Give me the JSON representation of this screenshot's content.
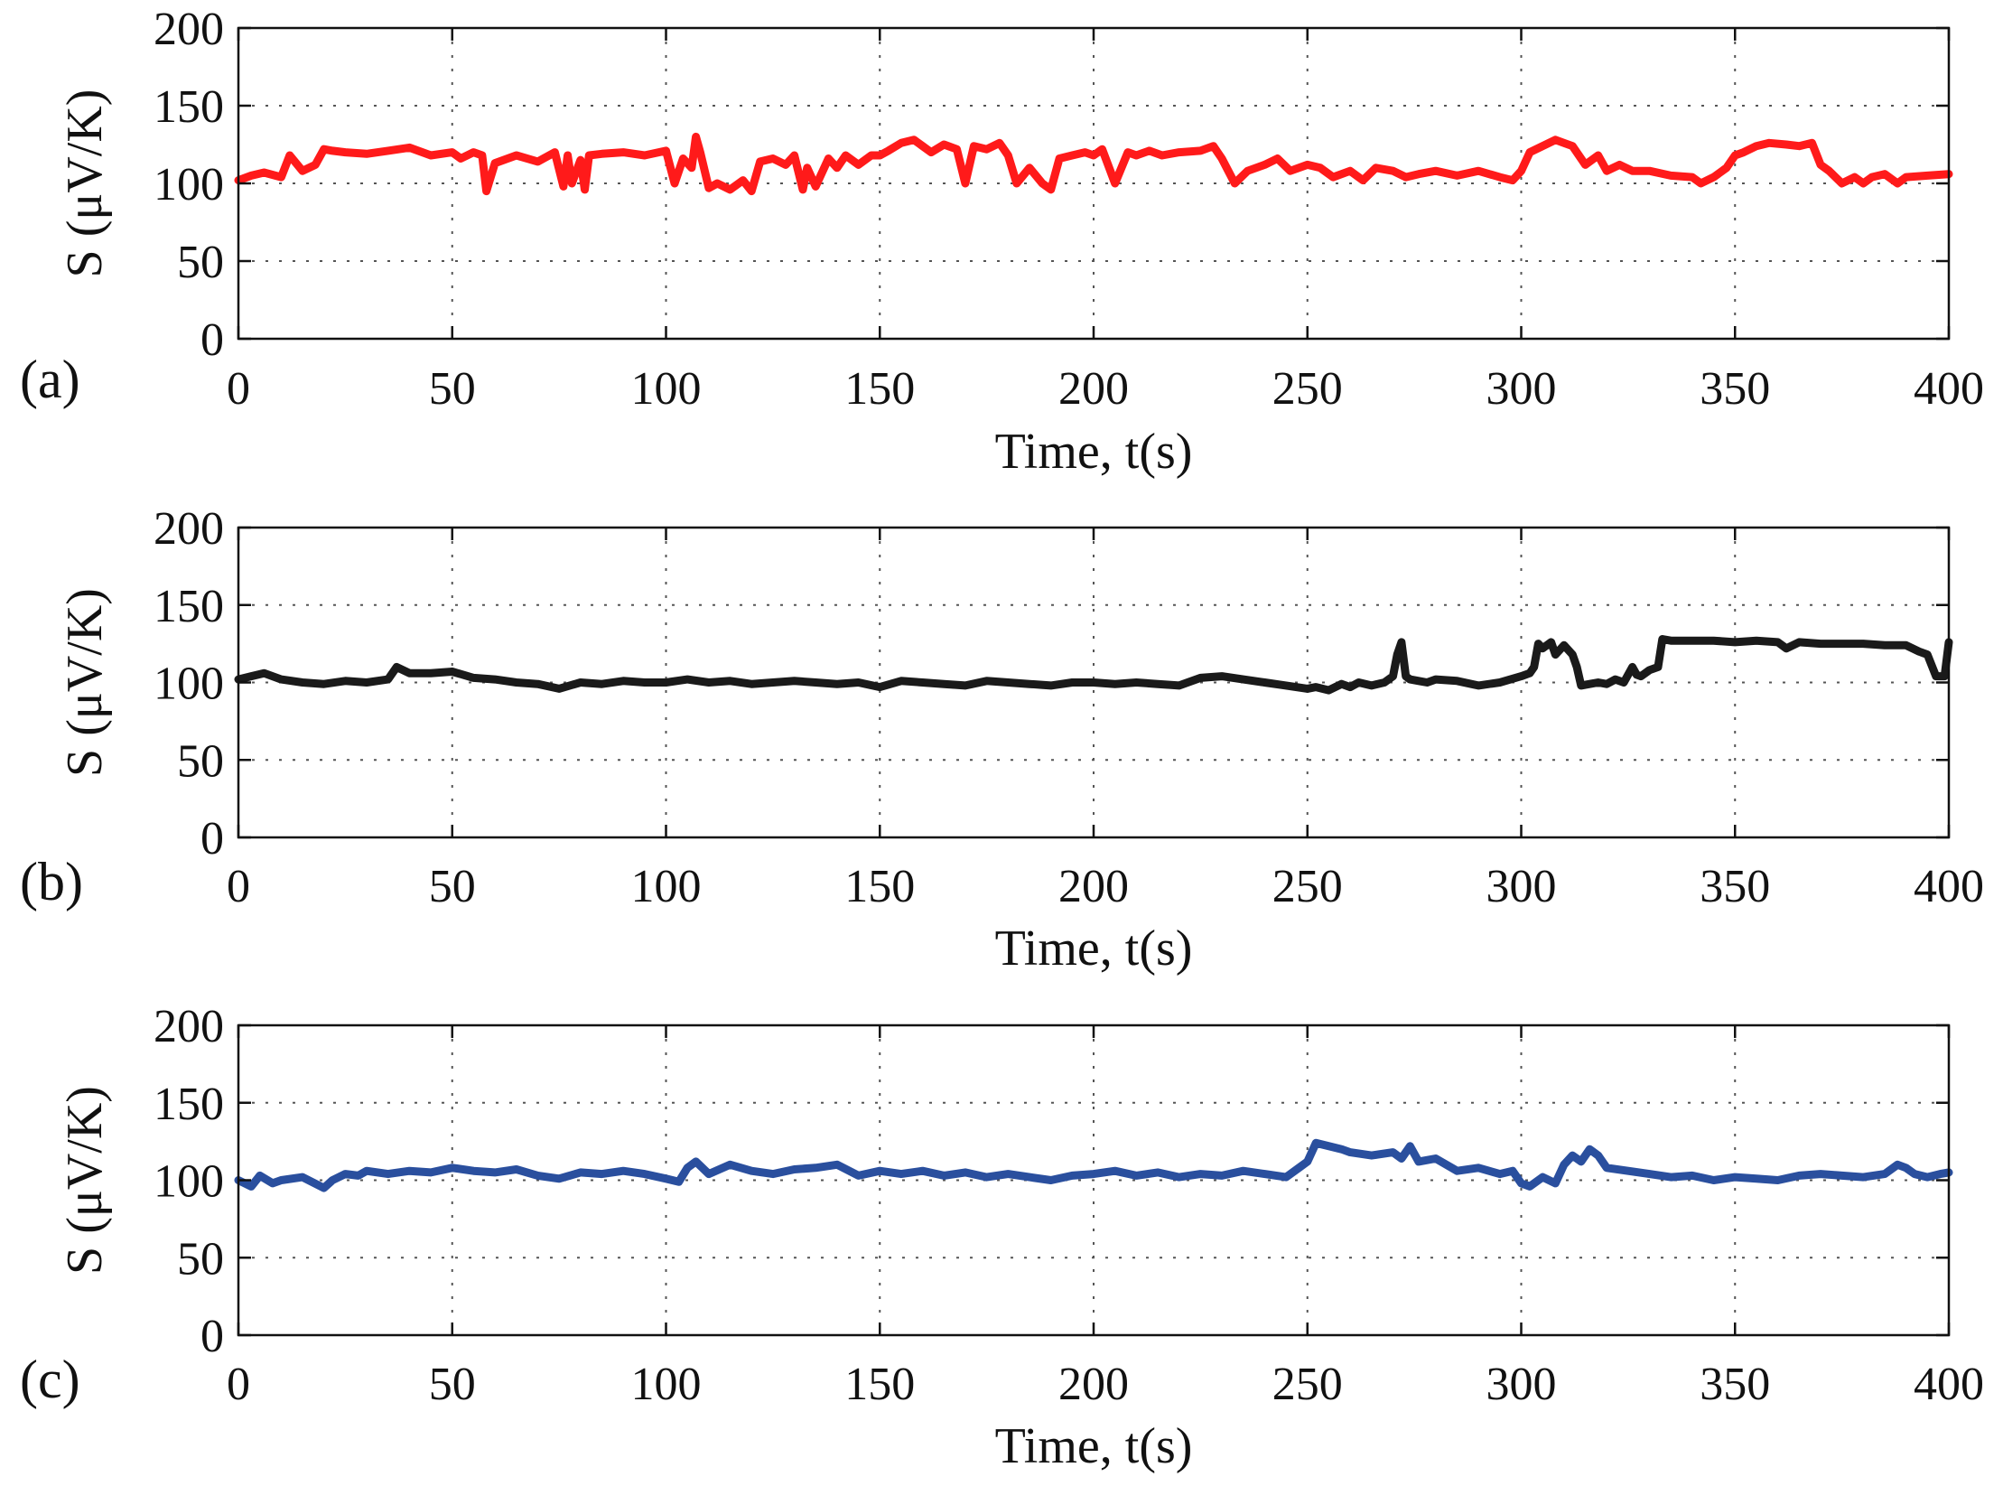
{
  "chart_data": [
    {
      "panel": "(a)",
      "type": "line",
      "xlabel": "Time, t(s)",
      "ylabel": "S (μV/K)",
      "xlim": [
        0,
        400
      ],
      "ylim": [
        0,
        200
      ],
      "xticks": [
        0,
        50,
        100,
        150,
        200,
        250,
        300,
        350,
        400
      ],
      "yticks": [
        0,
        50,
        100,
        150,
        200
      ],
      "grid": true,
      "color": "#ff1a1a",
      "series": [
        {
          "name": "a",
          "x": [
            0,
            3,
            6,
            10,
            12,
            15,
            18,
            20,
            22,
            25,
            30,
            35,
            40,
            45,
            50,
            52,
            55,
            57,
            58,
            60,
            65,
            70,
            74,
            76,
            77,
            78,
            80,
            81,
            82,
            85,
            90,
            95,
            100,
            102,
            104,
            106,
            107,
            108,
            110,
            112,
            115,
            118,
            120,
            122,
            125,
            128,
            130,
            132,
            133,
            135,
            138,
            140,
            142,
            145,
            148,
            150,
            152,
            155,
            158,
            160,
            162,
            165,
            168,
            170,
            172,
            175,
            178,
            180,
            182,
            185,
            188,
            190,
            192,
            195,
            198,
            200,
            202,
            205,
            208,
            210,
            213,
            216,
            220,
            225,
            228,
            230,
            233,
            236,
            240,
            243,
            246,
            250,
            253,
            256,
            260,
            263,
            266,
            270,
            273,
            276,
            280,
            285,
            290,
            295,
            298,
            300,
            302,
            305,
            308,
            310,
            312,
            315,
            318,
            320,
            323,
            326,
            330,
            335,
            340,
            342,
            345,
            348,
            350,
            352,
            355,
            358,
            362,
            365,
            368,
            370,
            372,
            375,
            378,
            380,
            382,
            385,
            388,
            390,
            395,
            400
          ],
          "y": [
            102,
            105,
            107,
            104,
            118,
            108,
            112,
            122,
            121,
            120,
            119,
            121,
            123,
            118,
            120,
            116,
            120,
            118,
            95,
            113,
            118,
            114,
            120,
            98,
            118,
            100,
            115,
            96,
            118,
            119,
            120,
            118,
            121,
            100,
            116,
            110,
            130,
            120,
            97,
            100,
            96,
            102,
            95,
            114,
            116,
            112,
            118,
            96,
            110,
            98,
            116,
            110,
            118,
            112,
            118,
            118,
            121,
            126,
            128,
            124,
            120,
            125,
            122,
            100,
            124,
            122,
            126,
            118,
            100,
            110,
            100,
            96,
            116,
            118,
            120,
            118,
            122,
            100,
            120,
            118,
            121,
            118,
            120,
            121,
            124,
            116,
            100,
            108,
            112,
            116,
            108,
            112,
            110,
            104,
            108,
            102,
            110,
            108,
            104,
            106,
            108,
            105,
            108,
            104,
            102,
            108,
            120,
            124,
            128,
            126,
            124,
            112,
            118,
            108,
            112,
            108,
            108,
            105,
            104,
            100,
            104,
            110,
            118,
            120,
            124,
            126,
            125,
            124,
            126,
            112,
            108,
            100,
            104,
            100,
            104,
            106,
            100,
            104,
            105,
            106
          ]
        }
      ]
    },
    {
      "panel": "(b)",
      "type": "line",
      "xlabel": "Time, t(s)",
      "ylabel": "S (μV/K)",
      "xlim": [
        0,
        400
      ],
      "ylim": [
        0,
        200
      ],
      "xticks": [
        0,
        50,
        100,
        150,
        200,
        250,
        300,
        350,
        400
      ],
      "yticks": [
        0,
        50,
        100,
        150,
        200
      ],
      "grid": true,
      "color": "#1a1a1a",
      "series": [
        {
          "name": "b",
          "x": [
            0,
            3,
            6,
            10,
            15,
            20,
            25,
            30,
            35,
            37,
            40,
            45,
            50,
            55,
            60,
            65,
            70,
            75,
            80,
            85,
            90,
            95,
            100,
            105,
            110,
            115,
            120,
            125,
            130,
            135,
            140,
            145,
            150,
            155,
            160,
            165,
            170,
            175,
            180,
            185,
            190,
            195,
            200,
            205,
            210,
            215,
            220,
            225,
            230,
            235,
            240,
            245,
            250,
            252,
            255,
            258,
            260,
            262,
            265,
            268,
            270,
            271,
            272,
            273,
            274,
            276,
            278,
            280,
            285,
            290,
            295,
            300,
            302,
            303,
            304,
            305,
            307,
            308,
            310,
            312,
            313,
            314,
            316,
            318,
            320,
            322,
            324,
            326,
            327,
            328,
            330,
            332,
            333,
            335,
            340,
            345,
            350,
            355,
            360,
            362,
            365,
            370,
            375,
            380,
            385,
            390,
            393,
            395,
            397,
            399,
            400
          ],
          "y": [
            102,
            104,
            106,
            102,
            100,
            99,
            101,
            100,
            102,
            110,
            106,
            106,
            107,
            103,
            102,
            100,
            99,
            96,
            100,
            99,
            101,
            100,
            100,
            102,
            100,
            101,
            99,
            100,
            101,
            100,
            99,
            100,
            97,
            101,
            100,
            99,
            98,
            101,
            100,
            99,
            98,
            100,
            100,
            99,
            100,
            99,
            98,
            103,
            104,
            102,
            100,
            98,
            96,
            97,
            95,
            99,
            97,
            100,
            98,
            100,
            104,
            118,
            126,
            104,
            102,
            101,
            100,
            102,
            101,
            98,
            100,
            104,
            106,
            110,
            125,
            122,
            126,
            118,
            124,
            118,
            110,
            98,
            99,
            100,
            99,
            102,
            100,
            110,
            105,
            104,
            108,
            110,
            128,
            127,
            127,
            127,
            126,
            127,
            126,
            122,
            126,
            125,
            125,
            125,
            124,
            124,
            120,
            118,
            104,
            104,
            126
          ]
        }
      ]
    },
    {
      "panel": "(c)",
      "type": "line",
      "xlabel": "Time, t(s)",
      "ylabel": "S (μV/K)",
      "xlim": [
        0,
        400
      ],
      "ylim": [
        0,
        200
      ],
      "xticks": [
        0,
        50,
        100,
        150,
        200,
        250,
        300,
        350,
        400
      ],
      "yticks": [
        0,
        50,
        100,
        150,
        200
      ],
      "grid": true,
      "color": "#2a4f9e",
      "series": [
        {
          "name": "c",
          "x": [
            0,
            3,
            5,
            8,
            10,
            15,
            20,
            22,
            25,
            28,
            30,
            35,
            40,
            45,
            50,
            55,
            60,
            65,
            70,
            75,
            80,
            85,
            90,
            95,
            100,
            103,
            105,
            107,
            110,
            115,
            120,
            125,
            130,
            135,
            140,
            145,
            150,
            155,
            160,
            165,
            170,
            175,
            180,
            185,
            190,
            195,
            200,
            205,
            210,
            215,
            220,
            225,
            230,
            235,
            240,
            245,
            248,
            250,
            252,
            255,
            258,
            260,
            265,
            270,
            272,
            274,
            276,
            280,
            285,
            290,
            295,
            298,
            300,
            302,
            305,
            308,
            310,
            312,
            314,
            316,
            318,
            320,
            325,
            330,
            335,
            340,
            345,
            350,
            355,
            360,
            365,
            370,
            375,
            380,
            385,
            388,
            390,
            392,
            395,
            398,
            400
          ],
          "y": [
            100,
            96,
            103,
            98,
            100,
            102,
            95,
            100,
            104,
            103,
            106,
            104,
            106,
            105,
            108,
            106,
            105,
            107,
            103,
            101,
            105,
            104,
            106,
            104,
            101,
            99,
            108,
            112,
            104,
            110,
            106,
            104,
            107,
            108,
            110,
            103,
            106,
            104,
            106,
            103,
            105,
            102,
            104,
            102,
            100,
            103,
            104,
            106,
            103,
            105,
            102,
            104,
            103,
            106,
            104,
            102,
            108,
            112,
            124,
            122,
            120,
            118,
            116,
            118,
            114,
            122,
            112,
            114,
            106,
            108,
            104,
            106,
            98,
            96,
            102,
            98,
            110,
            116,
            112,
            120,
            116,
            108,
            106,
            104,
            102,
            103,
            100,
            102,
            101,
            100,
            103,
            104,
            103,
            102,
            104,
            110,
            108,
            104,
            102,
            104,
            105
          ]
        }
      ]
    }
  ]
}
